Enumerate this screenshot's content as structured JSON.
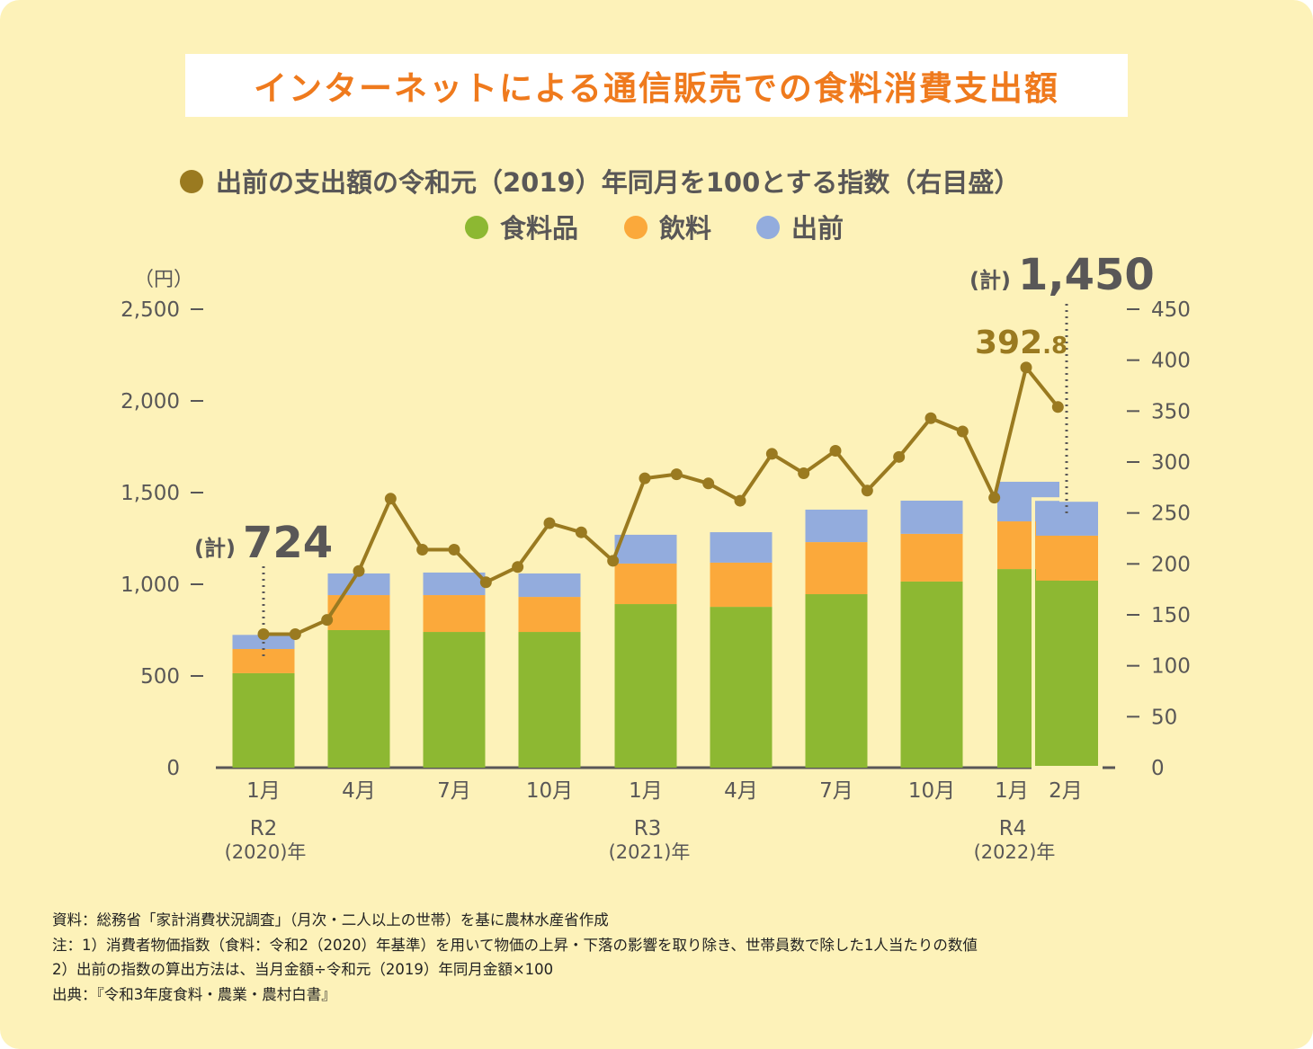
{
  "title": "インターネットによる通信販売での食料消費支出額",
  "chart_data": {
    "type": "bar+line",
    "title": "インターネットによる通信販売での食料消費支出額",
    "legend_line": "出前の支出額の令和元（2019）年同月を100とする指数（右目盛）",
    "left_axis": {
      "unit": "（円）",
      "range": [
        0,
        2500
      ],
      "ticks": [
        "0",
        "500",
        "1,000",
        "1,500",
        "2,000",
        "2,500"
      ]
    },
    "right_axis": {
      "range": [
        0,
        450
      ],
      "ticks": [
        "0",
        "50",
        "100",
        "150",
        "200",
        "250",
        "300",
        "350",
        "400",
        "450"
      ]
    },
    "categories": [
      "1月",
      "4月",
      "7月",
      "10月",
      "1月",
      "4月",
      "7月",
      "10月",
      "1月",
      "2月"
    ],
    "year_labels": [
      {
        "era": "R2",
        "year": "(2020)年"
      },
      {
        "era": "R3",
        "year": "(2021)年"
      },
      {
        "era": "R4",
        "year": "(2022)年"
      }
    ],
    "series": [
      {
        "name": "食料品",
        "color": "#8db832",
        "values": [
          515,
          750,
          740,
          740,
          892,
          877,
          946,
          1015,
          1083,
          1020
        ]
      },
      {
        "name": "飲料",
        "color": "#fba93b",
        "values": [
          132,
          191,
          201,
          191,
          221,
          241,
          284,
          260,
          260,
          245
        ]
      },
      {
        "name": "出前",
        "color": "#93acdd",
        "values": [
          77,
          118,
          123,
          128,
          157,
          166,
          177,
          181,
          216,
          185
        ]
      }
    ],
    "line": {
      "name": "出前の支出額の令和元（2019）年同月を100とする指数（右目盛）",
      "color": "#9a7a20",
      "months": [
        "2020-01",
        "2020-02",
        "2020-03",
        "2020-04",
        "2020-05",
        "2020-06",
        "2020-07",
        "2020-08",
        "2020-09",
        "2020-10",
        "2020-11",
        "2020-12",
        "2021-01",
        "2021-02",
        "2021-03",
        "2021-04",
        "2021-05",
        "2021-06",
        "2021-07",
        "2021-08",
        "2021-09",
        "2021-10",
        "2021-11",
        "2021-12",
        "2022-01",
        "2022-02"
      ],
      "values": [
        131,
        131,
        145,
        193,
        264,
        214,
        214,
        182,
        197,
        240,
        231,
        203,
        284,
        288,
        279,
        262,
        308,
        289,
        311,
        272,
        305,
        343,
        330,
        265,
        392.8,
        354
      ]
    },
    "annotations": {
      "first_total_prefix": "(計)",
      "first_total": "724",
      "last_total_prefix": "(計)",
      "last_total": "1,450",
      "peak_int": "392",
      "peak_dec": ".8"
    }
  },
  "notes": [
    "資料：総務省「家計消費状況調査」（月次・二人以上の世帯）を基に農林水産省作成",
    "注：1）消費者物価指数（食料：令和2（2020）年基準）を用いて物価の上昇・下落の影響を取り除き、世帯員数で除した1人当たりの数値",
    "2）出前の指数の算出方法は、当月金額÷令和元（2019）年同月金額×100",
    "出典：『令和3年度食料・農業・農村白書』"
  ]
}
